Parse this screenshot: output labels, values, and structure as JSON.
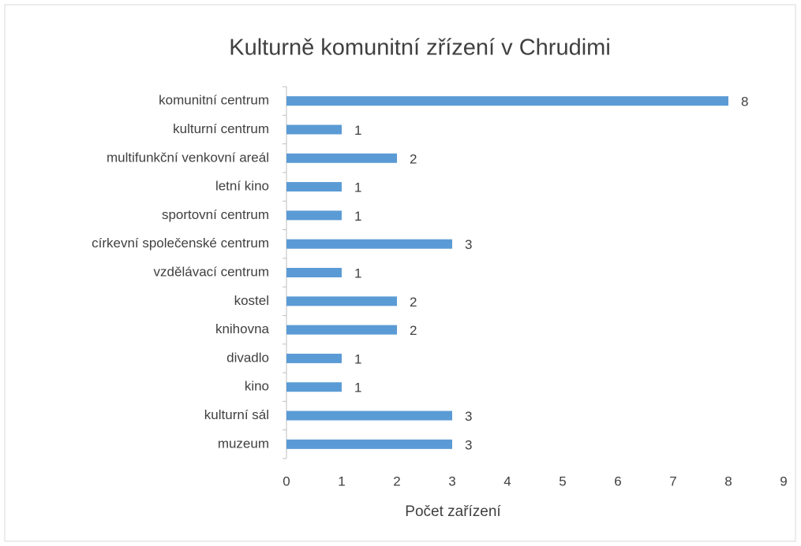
{
  "chart_data": {
    "type": "bar",
    "orientation": "horizontal",
    "title": "Kulturně komunitní zřízení v Chrudimi",
    "x_label": "Počet zařízení",
    "categories": [
      "komunitní centrum",
      "kulturní centrum",
      "multifunkční venkovní areál",
      "letní kino",
      "sportovní centrum",
      "církevní společenské centrum",
      "vzdělávací centrum",
      "kostel",
      "knihovna",
      "divadlo",
      "kino",
      "kulturní sál",
      "muzeum"
    ],
    "values": [
      8,
      1,
      2,
      1,
      1,
      3,
      1,
      2,
      2,
      1,
      1,
      3,
      3
    ],
    "color": "#5b9bd5",
    "xlim": [
      0,
      9
    ],
    "xticks": [
      0,
      1,
      2,
      3,
      4,
      5,
      6,
      7,
      8,
      9
    ],
    "grid": false,
    "data_labels": true
  }
}
